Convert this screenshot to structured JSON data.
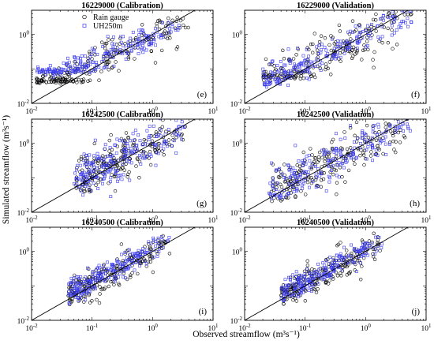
{
  "figure": {
    "xlabel": "Observed streamflow (m³s⁻¹)",
    "ylabel": "Simulated streamflow (m³s⁻¹)"
  },
  "colors": {
    "rain_gauge": "#000000",
    "uh250m": "#3b3bf0",
    "one_to_one": "#000000"
  },
  "legend": [
    "Rain gauge",
    "UH250m"
  ],
  "chart_data": [
    {
      "type": "scatter",
      "title": "16229000 (Calibration)",
      "panel_label": "(e)",
      "xscale": "log",
      "yscale": "log",
      "xlim": [
        0.01,
        10
      ],
      "ylim": [
        0.01,
        5
      ],
      "x_ticks": [
        0.01,
        0.1,
        1,
        10
      ],
      "y_ticks": [
        0.01,
        1
      ],
      "one_to_one_line": true,
      "legend": "top-left",
      "series": [
        {
          "name": "Rain gauge",
          "marker": "circle",
          "cloud": {
            "x_range": [
              0.012,
              4.0
            ],
            "center_slope": 0.85,
            "center_offset": 0.85,
            "spread": 0.28,
            "y_floor": 0.045,
            "count": 220
          }
        },
        {
          "name": "UH250m",
          "marker": "square",
          "cloud": {
            "x_range": [
              0.012,
              4.0
            ],
            "center_slope": 0.75,
            "center_offset": 0.95,
            "spread": 0.18,
            "y_floor": 0.085,
            "count": 220
          }
        }
      ]
    },
    {
      "type": "scatter",
      "title": "16229000 (Validation)",
      "panel_label": "(f)",
      "xscale": "log",
      "yscale": "log",
      "xlim": [
        0.01,
        10
      ],
      "ylim": [
        0.01,
        5
      ],
      "x_ticks": [
        0.01,
        0.1,
        1,
        10
      ],
      "y_ticks": [
        0.01,
        1
      ],
      "one_to_one_line": true,
      "series": [
        {
          "name": "Rain gauge",
          "marker": "circle",
          "cloud": {
            "x_range": [
              0.02,
              7.0
            ],
            "center_slope": 0.9,
            "center_offset": 0.95,
            "spread": 0.3,
            "y_floor": 0.06,
            "count": 220
          }
        },
        {
          "name": "UH250m",
          "marker": "square",
          "cloud": {
            "x_range": [
              0.02,
              7.0
            ],
            "center_slope": 0.8,
            "center_offset": 0.9,
            "spread": 0.22,
            "y_floor": 0.035,
            "count": 220
          }
        }
      ]
    },
    {
      "type": "scatter",
      "title": "16242500 (Calibration)",
      "panel_label": "(g)",
      "xscale": "log",
      "yscale": "log",
      "xlim": [
        0.01,
        10
      ],
      "ylim": [
        0.01,
        5
      ],
      "x_ticks": [
        0.01,
        0.1,
        1,
        10
      ],
      "y_ticks": [
        0.01,
        1
      ],
      "one_to_one_line": true,
      "series": [
        {
          "name": "Rain gauge",
          "marker": "circle",
          "cloud": {
            "x_range": [
              0.05,
              3.5
            ],
            "center_slope": 0.85,
            "center_offset": 0.9,
            "spread": 0.35,
            "y_floor": 0.04,
            "count": 220
          }
        },
        {
          "name": "UH250m",
          "marker": "square",
          "cloud": {
            "x_range": [
              0.05,
              3.5
            ],
            "center_slope": 0.8,
            "center_offset": 0.95,
            "spread": 0.3,
            "y_floor": 0.035,
            "count": 220
          }
        }
      ]
    },
    {
      "type": "scatter",
      "title": "16242500 (Validation)",
      "panel_label": "(h)",
      "xscale": "log",
      "yscale": "log",
      "xlim": [
        0.01,
        10
      ],
      "ylim": [
        0.01,
        5
      ],
      "x_ticks": [
        0.01,
        0.1,
        1,
        10
      ],
      "y_ticks": [
        0.01,
        1
      ],
      "one_to_one_line": true,
      "series": [
        {
          "name": "Rain gauge",
          "marker": "circle",
          "cloud": {
            "x_range": [
              0.025,
              6.0
            ],
            "center_slope": 0.85,
            "center_offset": 0.85,
            "spread": 0.35,
            "y_floor": 0.025,
            "count": 220
          }
        },
        {
          "name": "UH250m",
          "marker": "square",
          "cloud": {
            "x_range": [
              0.025,
              6.0
            ],
            "center_slope": 0.85,
            "center_offset": 0.95,
            "spread": 0.32,
            "y_floor": 0.03,
            "count": 220
          }
        }
      ]
    },
    {
      "type": "scatter",
      "title": "16240500 (Calibration)",
      "panel_label": "(i)",
      "xscale": "log",
      "yscale": "log",
      "xlim": [
        0.01,
        10
      ],
      "ylim": [
        0.01,
        5
      ],
      "x_ticks": [
        0.01,
        0.1,
        1,
        10
      ],
      "y_ticks": [
        0.01,
        1
      ],
      "one_to_one_line": true,
      "series": [
        {
          "name": "Rain gauge",
          "marker": "circle",
          "cloud": {
            "x_range": [
              0.04,
              2.0
            ],
            "center_slope": 0.95,
            "center_offset": 1.05,
            "spread": 0.22,
            "y_floor": 0.025,
            "count": 220
          }
        },
        {
          "name": "UH250m",
          "marker": "square",
          "cloud": {
            "x_range": [
              0.04,
              2.0
            ],
            "center_slope": 0.9,
            "center_offset": 1.1,
            "spread": 0.18,
            "y_floor": 0.035,
            "count": 220
          }
        }
      ]
    },
    {
      "type": "scatter",
      "title": "16240500 (Validation)",
      "panel_label": "(j)",
      "xscale": "log",
      "yscale": "log",
      "xlim": [
        0.01,
        10
      ],
      "ylim": [
        0.01,
        5
      ],
      "x_ticks": [
        0.01,
        0.1,
        1,
        10
      ],
      "y_ticks": [
        0.01,
        1
      ],
      "one_to_one_line": true,
      "series": [
        {
          "name": "Rain gauge",
          "marker": "circle",
          "cloud": {
            "x_range": [
              0.04,
              2.0
            ],
            "center_slope": 0.95,
            "center_offset": 1.0,
            "spread": 0.22,
            "y_floor": 0.028,
            "count": 220
          }
        },
        {
          "name": "UH250m",
          "marker": "square",
          "cloud": {
            "x_range": [
              0.04,
              2.0
            ],
            "center_slope": 0.9,
            "center_offset": 1.05,
            "spread": 0.18,
            "y_floor": 0.035,
            "count": 220
          }
        }
      ]
    }
  ]
}
